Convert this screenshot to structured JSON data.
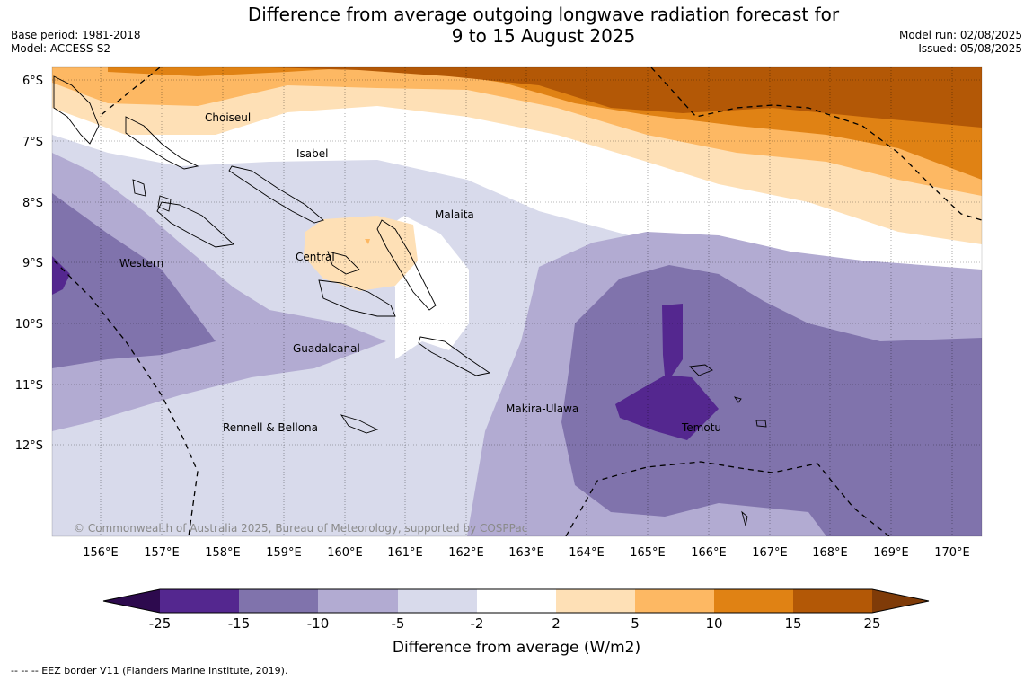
{
  "title": {
    "line1": "Difference from average outgoing longwave radiation forecast for",
    "line2": "9 to 15 August 2025"
  },
  "meta_left": [
    "Base period: 1981-2018",
    "Model: ACCESS-S2"
  ],
  "meta_right": [
    "Model run: 02/08/2025",
    "Issued: 05/08/2025"
  ],
  "map": {
    "lon_range": [
      155.5,
      170.5
    ],
    "lat_range": [
      -13.5,
      -5.8
    ],
    "lat_ticks": [
      "6°S",
      "7°S",
      "8°S",
      "9°S",
      "10°S",
      "11°S",
      "12°S"
    ],
    "lon_ticks": [
      "156°E",
      "157°E",
      "158°E",
      "159°E",
      "160°E",
      "161°E",
      "162°E",
      "163°E",
      "164°E",
      "165°E",
      "166°E",
      "167°E",
      "168°E",
      "169°E",
      "170°E"
    ],
    "gridlines": true,
    "places": [
      "Choiseul",
      "Isabel",
      "Malaita",
      "Western",
      "Central",
      "Guadalcanal",
      "Makira-Ulawa",
      "Rennell & Bellona",
      "Temotu"
    ],
    "credit": "© Commonwealth of Australia 2025, Bureau of Meteorology, supported by COSPPac"
  },
  "colorbar": {
    "ticks": [
      "-25",
      "-15",
      "-10",
      "-5",
      "-2",
      "2",
      "5",
      "10",
      "15",
      "25"
    ],
    "colors": [
      "#2d0a4e",
      "#54278f",
      "#8073ac",
      "#b2abd2",
      "#d8daeb",
      "#ffffff",
      "#fee0b6",
      "#fdb863",
      "#e08214",
      "#b35806",
      "#7f3b08"
    ],
    "label": "Difference from average (W/m2)"
  },
  "footnote": "--  --  -- EEZ border V11 (Flanders Marine Institute, 2019)."
}
